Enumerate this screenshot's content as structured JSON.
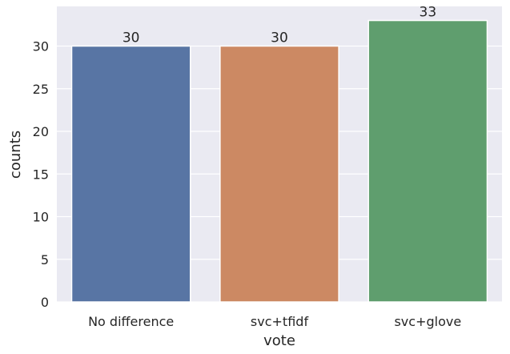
{
  "chart_data": {
    "type": "bar",
    "title": "",
    "xlabel": "vote",
    "ylabel": "counts",
    "categories": [
      "No difference",
      "svc+tfidf",
      "svc+glove"
    ],
    "values": [
      30,
      30,
      33
    ],
    "data_labels": [
      "30",
      "30",
      "33"
    ],
    "colors": [
      "#5875a4",
      "#cc8963",
      "#5f9e6e"
    ],
    "ylim": [
      0,
      34.65
    ],
    "yticks": [
      0,
      5,
      10,
      15,
      20,
      25,
      30
    ],
    "grid": true,
    "background": "#eaeaf2",
    "legend": "none"
  }
}
